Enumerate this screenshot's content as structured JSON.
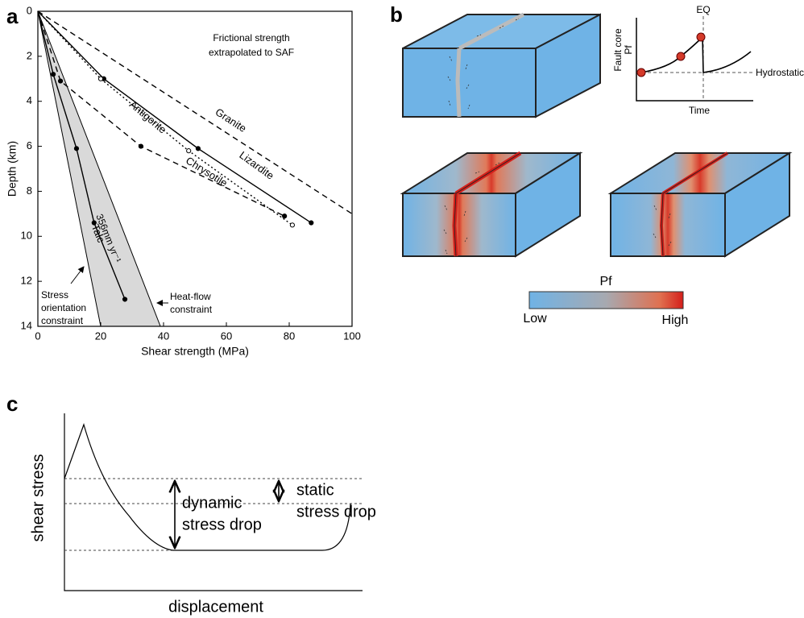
{
  "chart_data": {
    "type": "line",
    "panel_label": "a",
    "xlabel": "Shear strength (MPa)",
    "ylabel": "Depth (km)",
    "xlim": [
      0,
      100
    ],
    "xticks": [
      0,
      20,
      40,
      60,
      80,
      100
    ],
    "ylim": [
      0,
      14
    ],
    "yticks": [
      0,
      2,
      4,
      6,
      8,
      10,
      12,
      14
    ],
    "y_inverted": true,
    "note": [
      "Frictional strength",
      "extrapolated to SAF"
    ],
    "region": {
      "x_left": [
        0,
        20
      ],
      "x_right": [
        0,
        39
      ],
      "depth": [
        0,
        14
      ],
      "color": "#d9d9d9",
      "left_label": [
        "Stress",
        "orientation",
        "constraint"
      ],
      "right_label": [
        "Heat-flow",
        "constraint"
      ]
    },
    "series": [
      {
        "name": "Granite",
        "color": "#000000",
        "dash": "dashed",
        "marker": "none",
        "x": [
          0,
          100
        ],
        "values": [
          0,
          9
        ]
      },
      {
        "name": "Lizardite",
        "color": "#000000",
        "dash": "solid",
        "marker": "filled",
        "x": [
          0,
          21,
          51,
          87
        ],
        "values": [
          0,
          3,
          6.1,
          9.4
        ]
      },
      {
        "name": "Antigorite",
        "color": "#000000",
        "dash": "dotted",
        "marker": "open",
        "x": [
          0,
          20,
          48,
          81
        ],
        "values": [
          0,
          3,
          6.2,
          9.5
        ]
      },
      {
        "name": "Chrysotile",
        "color": "#000000",
        "dash": "dashed",
        "marker": "filled",
        "x": [
          0,
          7.2,
          32.8,
          78.5
        ],
        "values": [
          0,
          3.1,
          6,
          9.1
        ]
      },
      {
        "name": "Talc",
        "color": "#000000",
        "dash": "solid",
        "marker": "filled",
        "x": [
          0,
          4.9,
          12.3,
          17.9,
          27.7
        ],
        "values": [
          0,
          2.8,
          6.1,
          9.4,
          12.8
        ],
        "rate": "356mm yr⁻¹"
      }
    ]
  },
  "panel_b": {
    "label": "b",
    "inset": {
      "eq": "EQ",
      "ylabel": [
        "Fault core",
        "Pf"
      ],
      "xlabel": "Time",
      "hydrostatic": "Hydrostatic"
    },
    "colorbar": {
      "title": "Pf",
      "low": "Low",
      "high": "High"
    }
  },
  "panel_c": {
    "label": "c",
    "ylabel": "shear stress",
    "xlabel": "displacement",
    "dynamic": [
      "dynamic",
      "stress drop"
    ],
    "static": [
      "static",
      "stress drop"
    ]
  }
}
